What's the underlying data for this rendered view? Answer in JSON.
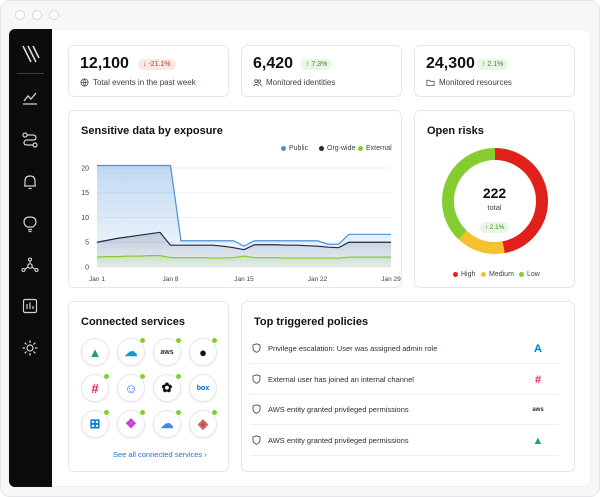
{
  "stats": [
    {
      "value": "12,100",
      "badge": "↓ -21.1%",
      "trend": "down",
      "label": "Total events in the past week",
      "icon": "globe-icon"
    },
    {
      "value": "6,420",
      "badge": "↑ 7.3%",
      "trend": "up",
      "label": "Monitored identities",
      "icon": "users-icon"
    },
    {
      "value": "24,300",
      "badge": "↑ 2.1%",
      "trend": "up",
      "label": "Monitored resources",
      "icon": "folder-icon"
    }
  ],
  "exposure": {
    "title": "Sensitive data by exposure",
    "legend": [
      {
        "label": "Public",
        "color": "#4a90d9"
      },
      {
        "label": "Org-wide",
        "color": "#1c2b4a"
      },
      {
        "label": "External",
        "color": "#84cc2f"
      }
    ]
  },
  "chart_data": {
    "type": "area",
    "title": "Sensitive data by exposure",
    "x": [
      "Jan 1",
      "Jan 2",
      "Jan 3",
      "Jan 4",
      "Jan 5",
      "Jan 6",
      "Jan 7",
      "Jan 8",
      "Jan 9",
      "Jan 10",
      "Jan 11",
      "Jan 12",
      "Jan 13",
      "Jan 14",
      "Jan 15",
      "Jan 16",
      "Jan 17",
      "Jan 18",
      "Jan 19",
      "Jan 20",
      "Jan 21",
      "Jan 22",
      "Jan 23",
      "Jan 24",
      "Jan 25",
      "Jan 26",
      "Jan 27",
      "Jan 28",
      "Jan 29"
    ],
    "xticks": [
      "Jan 1",
      "Jan 8",
      "Jan 15",
      "Jan 22",
      "Jan 29"
    ],
    "yticks": [
      0,
      5,
      10,
      15,
      20
    ],
    "ylim": [
      0,
      21
    ],
    "series": [
      {
        "name": "Public",
        "color": "#4a90d9",
        "values": [
          20.5,
          20.5,
          20.5,
          20.5,
          20.5,
          20.5,
          20.5,
          20.5,
          5.3,
          5.3,
          5.3,
          5.3,
          5.3,
          5.3,
          4.2,
          5.3,
          5.3,
          5.3,
          5.3,
          5.3,
          5.3,
          5.3,
          4.6,
          4.6,
          6.6,
          6.6,
          6.6,
          6.6,
          6.6
        ]
      },
      {
        "name": "Org-wide",
        "color": "#1c2b4a",
        "values": [
          5.0,
          5.4,
          5.8,
          6.1,
          6.4,
          6.7,
          7.0,
          4.4,
          4.4,
          4.4,
          4.4,
          4.4,
          4.2,
          3.9,
          3.5,
          4.5,
          4.5,
          4.5,
          4.4,
          4.4,
          4.3,
          4.2,
          4.0,
          3.9,
          5.0,
          5.0,
          5.0,
          5.0,
          5.0
        ]
      },
      {
        "name": "External",
        "color": "#84cc2f",
        "values": [
          2.0,
          2.1,
          2.1,
          2.2,
          2.2,
          2.3,
          2.3,
          1.9,
          1.9,
          1.9,
          1.9,
          1.8,
          1.8,
          1.9,
          2.2,
          1.9,
          1.9,
          1.9,
          1.8,
          1.8,
          1.8,
          1.8,
          1.8,
          1.8,
          2.0,
          2.0,
          2.0,
          2.0,
          2.0
        ]
      }
    ],
    "grid": true,
    "legend": "top-right"
  },
  "risks": {
    "title": "Open risks",
    "total": "222",
    "total_label": "total",
    "badge": "↑ 2.1%",
    "segments": [
      {
        "label": "High",
        "color": "#e0201b",
        "value": 0.47
      },
      {
        "label": "Medium",
        "color": "#f5c12e",
        "value": 0.15
      },
      {
        "label": "Low",
        "color": "#84cc2f",
        "value": 0.38
      }
    ]
  },
  "services": {
    "title": "Connected services",
    "link": "See all connected services ›",
    "items": [
      {
        "name": "google-drive-icon",
        "glyph": "▲",
        "color": "#1fa463",
        "connected": false
      },
      {
        "name": "salesforce-icon",
        "glyph": "☁",
        "color": "#1798c1",
        "connected": true
      },
      {
        "name": "aws-icon",
        "glyph": "aws",
        "color": "#232f3e",
        "connected": true
      },
      {
        "name": "github-icon",
        "glyph": "●",
        "color": "#111111",
        "connected": true
      },
      {
        "name": "slack-icon",
        "glyph": "#",
        "color": "#e01e5a",
        "connected": true
      },
      {
        "name": "robot-icon",
        "glyph": "☺",
        "color": "#2d7ff9",
        "connected": true
      },
      {
        "name": "openai-icon",
        "glyph": "✿",
        "color": "#111111",
        "connected": true
      },
      {
        "name": "box-icon",
        "glyph": "box",
        "color": "#0061d5",
        "connected": false
      },
      {
        "name": "windows-icon",
        "glyph": "⊞",
        "color": "#0078d4",
        "connected": true
      },
      {
        "name": "copilot-icon",
        "glyph": "❖",
        "color": "#c43bd4",
        "connected": true
      },
      {
        "name": "google-cloud-icon",
        "glyph": "☁",
        "color": "#4285f4",
        "connected": true
      },
      {
        "name": "layers-icon",
        "glyph": "◈",
        "color": "#c0504d",
        "connected": true
      }
    ]
  },
  "policies": {
    "title": "Top triggered policies",
    "rows": [
      {
        "text": "Privilege escalation: User was assigned admin role",
        "logo": "azure-icon",
        "glyph": "A",
        "color": "#0078d4"
      },
      {
        "text": "External user has joined an internal channel",
        "logo": "slack-icon",
        "glyph": "#",
        "color": "#e01e5a"
      },
      {
        "text": "AWS entity granted privileged permissions",
        "logo": "aws-icon",
        "glyph": "aws",
        "color": "#232f3e"
      },
      {
        "text": "AWS entity granted privileged permissions",
        "logo": "google-drive-icon",
        "glyph": "▲",
        "color": "#1fa463"
      }
    ]
  }
}
